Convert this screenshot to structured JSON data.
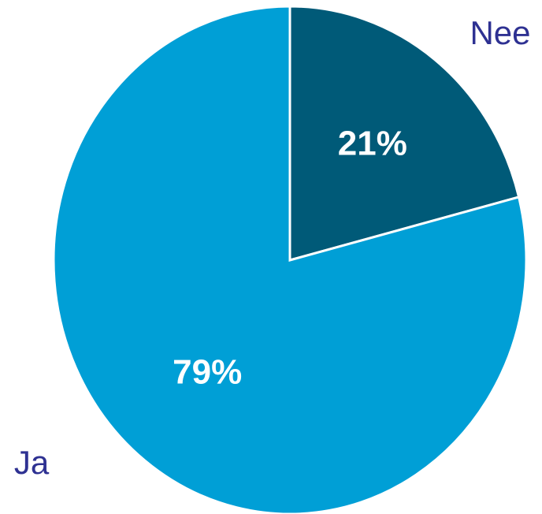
{
  "chart_data": {
    "type": "pie",
    "categories": [
      "Nee",
      "Ja"
    ],
    "values": [
      21,
      79
    ],
    "value_labels": [
      "21%",
      "79%"
    ],
    "colors": [
      "#005a78",
      "#009fd6"
    ]
  }
}
